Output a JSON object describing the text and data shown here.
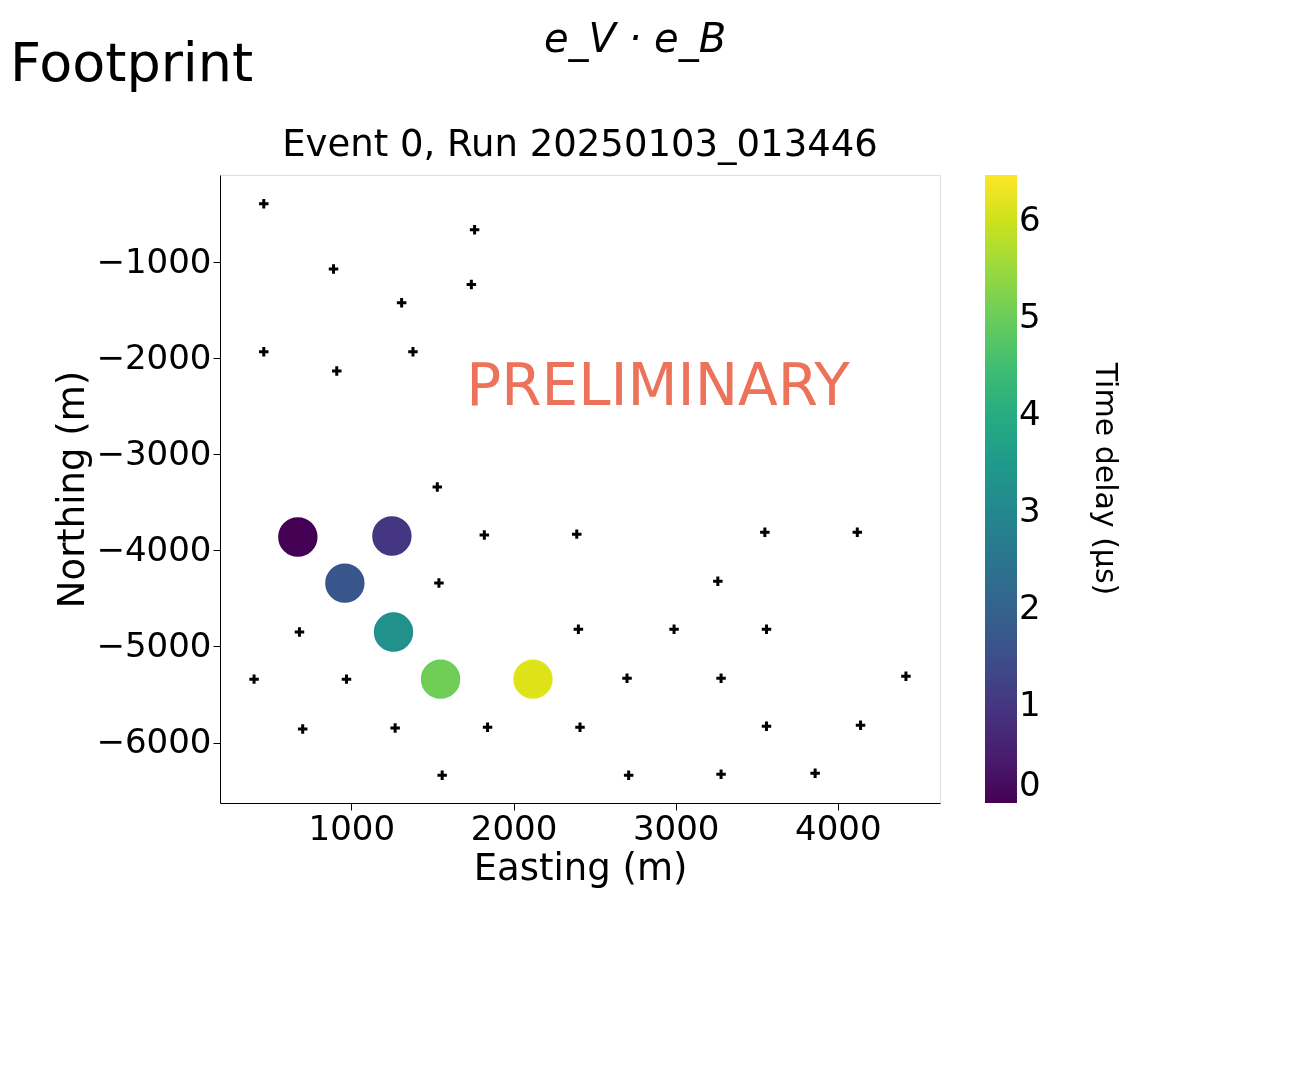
{
  "chart_data": {
    "type": "scatter",
    "title": "Event 0, Run 20250103_013446",
    "xlabel": "Easting (m)",
    "ylabel": "Northing (m)",
    "clabel": "Time delay (μs)",
    "annotations": [
      "Footprint",
      "e_V · e_B",
      "PRELIMINARY"
    ],
    "xlim": [
      190,
      4630
    ],
    "ylim": [
      -6630,
      -90
    ],
    "xticks": [
      1000,
      2000,
      3000,
      4000
    ],
    "yticks": [
      {
        "value": -1000,
        "label": "−1000"
      },
      {
        "value": -2000,
        "label": "−2000"
      },
      {
        "value": -3000,
        "label": "−3000"
      },
      {
        "value": -4000,
        "label": "−4000"
      },
      {
        "value": -5000,
        "label": "−5000"
      },
      {
        "value": -6000,
        "label": "−6000"
      }
    ],
    "clim": [
      0,
      6.47
    ],
    "cticks": [
      0,
      1,
      2,
      3,
      4,
      5,
      6
    ],
    "grid": false,
    "series": [
      {
        "marker": "cross",
        "color": "#000000",
        "x": [
          460,
          1760,
          890,
          1740,
          1310,
          460,
          910,
          1380,
          1530,
          1820,
          2390,
          3550,
          4120,
          1540,
          3260,
          680,
          2400,
          2990,
          3560,
          400,
          970,
          2700,
          3280,
          4420,
          700,
          1270,
          1840,
          2410,
          3560,
          4140,
          1560,
          2710,
          3280,
          3860
        ],
        "values": [
          -390,
          -660,
          -1070,
          -1230,
          -1420,
          -1930,
          -2130,
          -1930,
          -3340,
          -3840,
          -3830,
          -3810,
          -3810,
          -4340,
          -4320,
          -4850,
          -4820,
          -4820,
          -4820,
          -5340,
          -5340,
          -5330,
          -5330,
          -5310,
          -5860,
          -5850,
          -5840,
          -5840,
          -5830,
          -5820,
          -6340,
          -6340,
          -6330,
          -6320
        ]
      },
      {
        "marker": "circle",
        "x": [
          670,
          1250,
          960,
          1260,
          1550,
          2120
        ],
        "values": [
          -3860,
          -3850,
          -4340,
          -4850,
          -5340,
          -5340
        ],
        "cvalues": [
          0.0,
          1.0,
          1.7,
          3.2,
          5.0,
          6.2
        ],
        "colors": [
          "#440154",
          "#453681",
          "#39568c",
          "#21918c",
          "#70ce57",
          "#dde318"
        ]
      }
    ]
  }
}
